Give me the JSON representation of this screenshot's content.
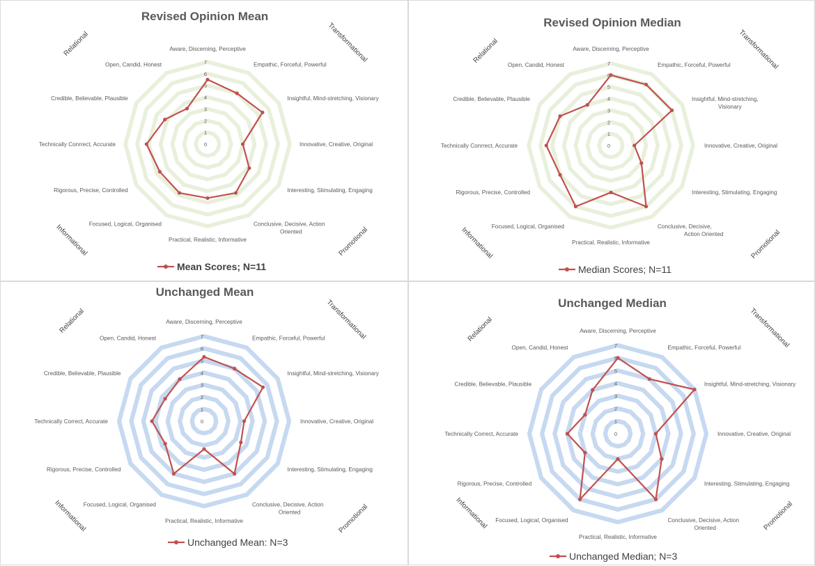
{
  "chart_data": [
    {
      "type": "radar",
      "title": "Revised Opinion Mean",
      "categories": [
        "Aware, Discerning, Perceptive",
        "Empathic, Forceful, Powerful",
        "Insightful, Mind-stretching, Visionary",
        "Innovative, Creative, Original",
        "Interesting, Stimulating, Engaging",
        "Conclusive, Decisive, Action Oriented",
        "Practical, Realistic, Informative",
        "Focused, Logical, Organised",
        "Rigorous, Precise, Controlled",
        "Technically Conrrect, Accurate",
        "Credible, Believable, Plausible",
        "Open, Candid, Honest"
      ],
      "series": [
        {
          "name": "Mean Scores; N=11",
          "values": [
            5.5,
            5.0,
            5.4,
            3.0,
            4.1,
            4.8,
            4.6,
            4.8,
            4.7,
            5.2,
            4.2,
            3.5
          ],
          "color": "#c0504d"
        }
      ],
      "rlim": [
        0,
        7
      ],
      "ticks": [
        "0",
        "1",
        "2",
        "3",
        "4",
        "5",
        "6",
        "7"
      ],
      "grid_color": "#e8f0dc",
      "quadrants": [
        "Relational",
        "Transformational",
        "Informational",
        "Promotional"
      ],
      "legend": "Mean Scores; N=11",
      "legend_bold": true
    },
    {
      "type": "radar",
      "title": "Revised Opinion Median",
      "categories": [
        "Aware, Discerning, Perceptive",
        "Empathic, Forceful, Powerful",
        "Insightful, Mind-stretching, Visionary",
        "Innovative, Creative, Original",
        "Interesting, Stimulating, Engaging",
        "Conclusive, Decisive, Action Oriented",
        "Practical, Realistic, Informative",
        "Focused, Logical, Organised",
        "Rigorous, Precise, Controlled",
        "Technically Conrrect, Accurate",
        "Credible, Believable, Plausible",
        "Open, Candid, Honest"
      ],
      "series": [
        {
          "name": "Median Scores; N=11",
          "values": [
            6.0,
            6.0,
            6.0,
            2.0,
            3.0,
            6.0,
            4.0,
            6.0,
            5.0,
            5.5,
            5.0,
            4.0
          ],
          "color": "#c0504d"
        }
      ],
      "rlim": [
        0,
        7
      ],
      "ticks": [
        "0",
        "1",
        "2",
        "3",
        "4",
        "5",
        "6",
        "7"
      ],
      "grid_color": "#e8f0dc",
      "quadrants": [
        "Relational",
        "Transformational",
        "Informational",
        "Promotional"
      ],
      "legend": "Median Scores; N=11",
      "legend_bold": false
    },
    {
      "type": "radar",
      "title": "Unchanged Mean",
      "categories": [
        "Aware, Discerning, Perceptive",
        "Empathic, Forceful, Powerful",
        "Insightful, Mind-stretching, Visionary",
        "Innovative, Creative, Original",
        "Interesting, Stimulating, Engaging",
        "Conclusive, Decisive, Action Oriented",
        "Practical, Realistic, Informative",
        "Focused, Logical, Organised",
        "Rigorous, Precise, Controlled",
        "Technically Correct, Accurate",
        "Credible, Believable, Plausible",
        "Open, Candid, Honest"
      ],
      "series": [
        {
          "name": "Unchanged Mean: N=3",
          "values": [
            5.3,
            5.0,
            5.6,
            3.3,
            3.5,
            5.0,
            2.3,
            5.0,
            3.7,
            4.3,
            3.7,
            4.0
          ],
          "color": "#c0504d"
        }
      ],
      "rlim": [
        0,
        7
      ],
      "ticks": [
        "0",
        "1",
        "2",
        "3",
        "4",
        "5",
        "6",
        "7"
      ],
      "grid_color": "#c6d9f0",
      "quadrants": [
        "Relational",
        "Transformational",
        "Informational",
        "Promotional"
      ],
      "legend": "Unchanged Mean: N=3",
      "legend_bold": false
    },
    {
      "type": "radar",
      "title": "Unchanged Median",
      "categories": [
        "Aware, Discerning, Perceptive",
        "Empathic, Forceful, Powerful",
        "Insightful, Mind-stretching, Visionary",
        "Innovative, Creative, Original",
        "Interesting, Stimulating, Engaging",
        "Conclusive, Decisive, Action Oriented",
        "Practical, Realistic, Informative",
        "Focused, Logical, Organised",
        "Rigorous, Precise, Controlled",
        "Technically Correct, Accurate",
        "Credible, Believable, Plausible",
        "Open, Candid, Honest"
      ],
      "series": [
        {
          "name": "Unchanged Median; N=3",
          "values": [
            6.0,
            5.0,
            7.0,
            3.0,
            4.0,
            6.0,
            2.0,
            6.0,
            3.0,
            4.0,
            3.0,
            4.0
          ],
          "color": "#c0504d"
        }
      ],
      "rlim": [
        0,
        7
      ],
      "ticks": [
        "0",
        "1",
        "2",
        "3",
        "4",
        "5",
        "6",
        "7"
      ],
      "grid_color": "#c6d9f0",
      "quadrants": [
        "Relational",
        "Transformational",
        "Informational",
        "Promotional"
      ],
      "legend": "Unchanged Median; N=3",
      "legend_bold": false
    }
  ]
}
